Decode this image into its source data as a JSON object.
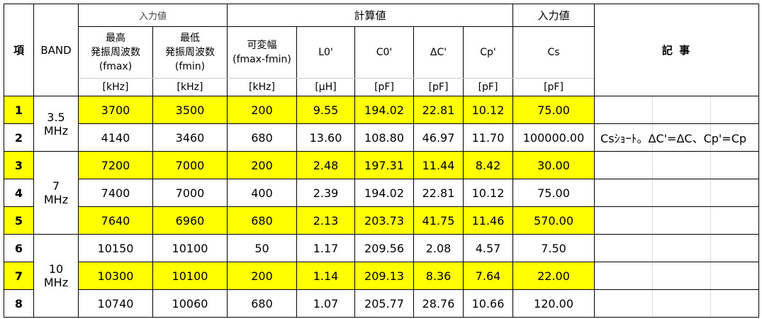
{
  "header": {
    "item": "項",
    "band": "BAND",
    "groups": [
      "入力値",
      "計算値",
      "入力値"
    ],
    "remarks": "記 事",
    "columns": [
      [
        "最高",
        "発振周波数",
        "(fmax)"
      ],
      [
        "最低",
        "発振周波数",
        "(fmin)"
      ],
      [
        "可変幅",
        "(fmax-fmin)"
      ],
      [
        "L0'"
      ],
      [
        "C0'"
      ],
      [
        "ΔC'"
      ],
      [
        "Cp'"
      ],
      [
        "Cs"
      ]
    ],
    "units": [
      "[kHz]",
      "[kHz]",
      "[kHz]",
      "[μH]",
      "[pF]",
      "[pF]",
      "[pF]",
      "[pF]"
    ]
  },
  "bands": [
    {
      "label": [
        "3.5",
        "MHz"
      ],
      "rows": [
        {
          "item": "1",
          "values": [
            "3700",
            "3500",
            "200",
            "9.55",
            "194.02",
            "22.81",
            "10.12",
            "75.00"
          ]
        },
        {
          "item": "2",
          "values": [
            "4140",
            "3460",
            "680",
            "13.60",
            "108.80",
            "46.97",
            "11.70",
            "100000.00"
          ],
          "remark": "Csｼｮｰﾄ。ΔC'=ΔC、Cp'=Cp"
        }
      ]
    },
    {
      "label": [
        "7",
        "MHz"
      ],
      "rows": [
        {
          "item": "3",
          "values": [
            "7200",
            "7000",
            "200",
            "2.48",
            "197.31",
            "11.44",
            "8.42",
            "30.00"
          ]
        },
        {
          "item": "4",
          "values": [
            "7400",
            "7000",
            "400",
            "2.39",
            "194.02",
            "22.81",
            "10.12",
            "75.00"
          ]
        },
        {
          "item": "5",
          "values": [
            "7640",
            "6960",
            "680",
            "2.13",
            "203.73",
            "41.75",
            "11.46",
            "570.00"
          ]
        }
      ]
    },
    {
      "label": [
        "10",
        "MHz"
      ],
      "rows": [
        {
          "item": "6",
          "values": [
            "10150",
            "10100",
            "50",
            "1.17",
            "209.56",
            "2.08",
            "4.57",
            "7.50"
          ]
        },
        {
          "item": "7",
          "values": [
            "10300",
            "10100",
            "200",
            "1.14",
            "209.13",
            "8.36",
            "7.64",
            "22.00"
          ]
        },
        {
          "item": "8",
          "values": [
            "10740",
            "10060",
            "680",
            "1.07",
            "205.77",
            "28.76",
            "10.66",
            "120.00"
          ]
        }
      ]
    }
  ]
}
